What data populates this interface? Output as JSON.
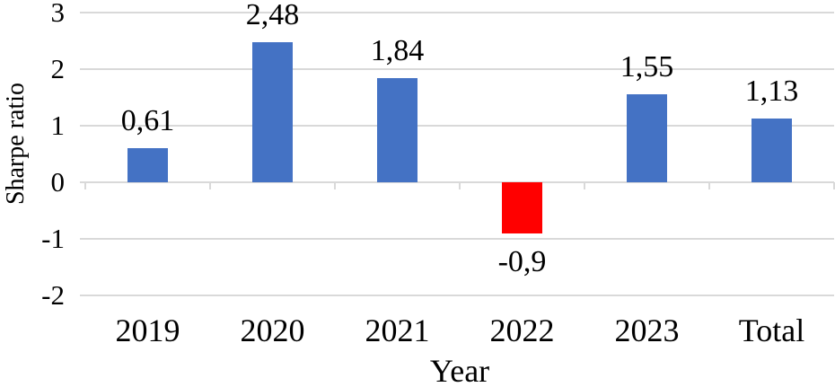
{
  "chart_data": {
    "type": "bar",
    "title": "",
    "xlabel": "Year",
    "ylabel": "Sharpe ratio",
    "categories": [
      "2019",
      "2020",
      "2021",
      "2022",
      "2023",
      "Total"
    ],
    "values": [
      0.61,
      2.48,
      1.84,
      -0.9,
      1.55,
      1.13
    ],
    "value_labels": [
      "0,61",
      "2,48",
      "1,84",
      "-0,9",
      "1,55",
      "1,13"
    ],
    "bar_colors": [
      "#4472C4",
      "#4472C4",
      "#4472C4",
      "#FF0000",
      "#4472C4",
      "#4472C4"
    ],
    "ylim": [
      -2,
      3
    ],
    "yticks": [
      3,
      2,
      1,
      0,
      -1,
      -2
    ],
    "ytick_labels": [
      "3",
      "2",
      "1",
      "0",
      "-1",
      "-2"
    ],
    "grid": "horizontal",
    "legend_position": "none",
    "decimal_separator": ",",
    "colors": {
      "positive_bar": "#4472C4",
      "negative_bar": "#FF0000",
      "gridline": "#D9D9D9",
      "text": "#000000"
    }
  }
}
